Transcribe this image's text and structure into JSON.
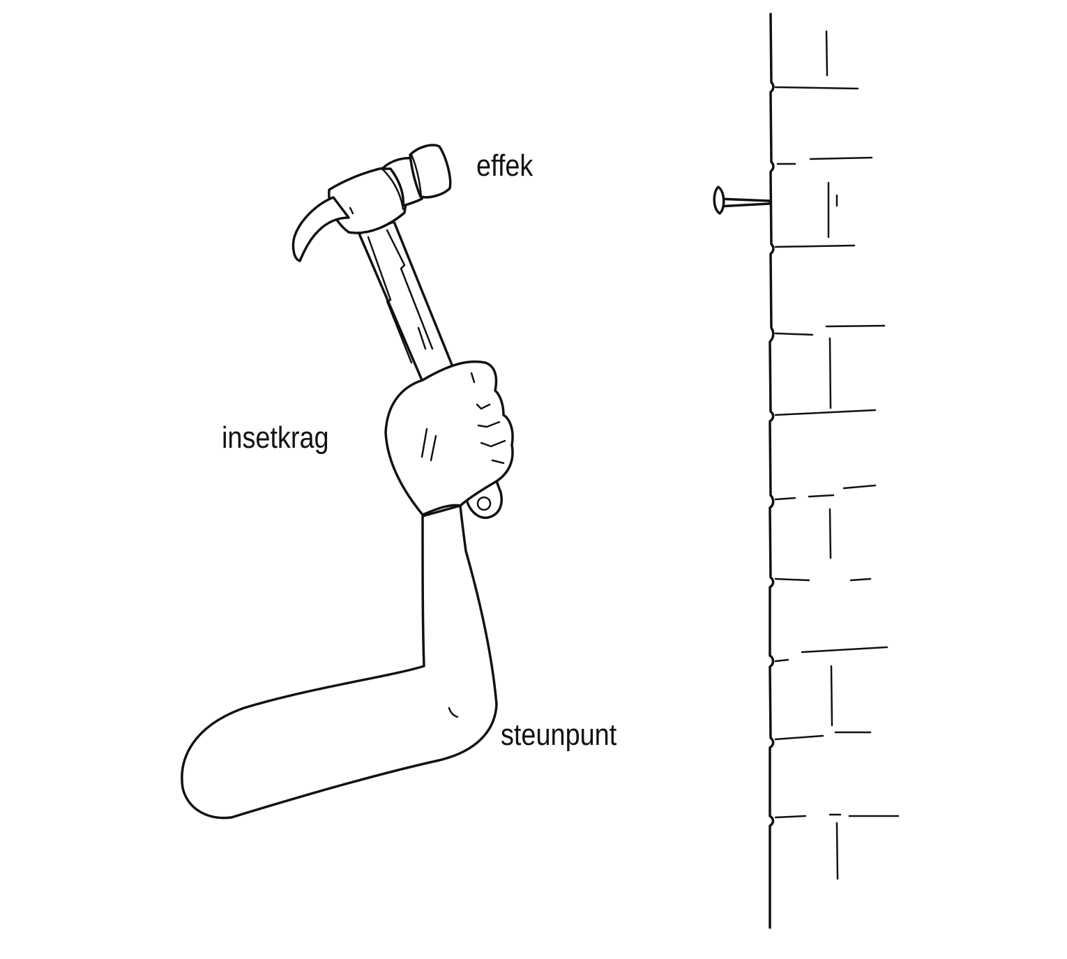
{
  "labels": {
    "effort_label": "effek",
    "load_label": "insetkrag",
    "fulcrum_label": "steunpunt"
  },
  "colors": {
    "ink": "#111111",
    "background": "#ffffff"
  },
  "icons": {
    "hammer": "hammer-icon",
    "arm": "arm-icon",
    "wall": "brick-wall-icon",
    "nail": "nail-icon"
  }
}
